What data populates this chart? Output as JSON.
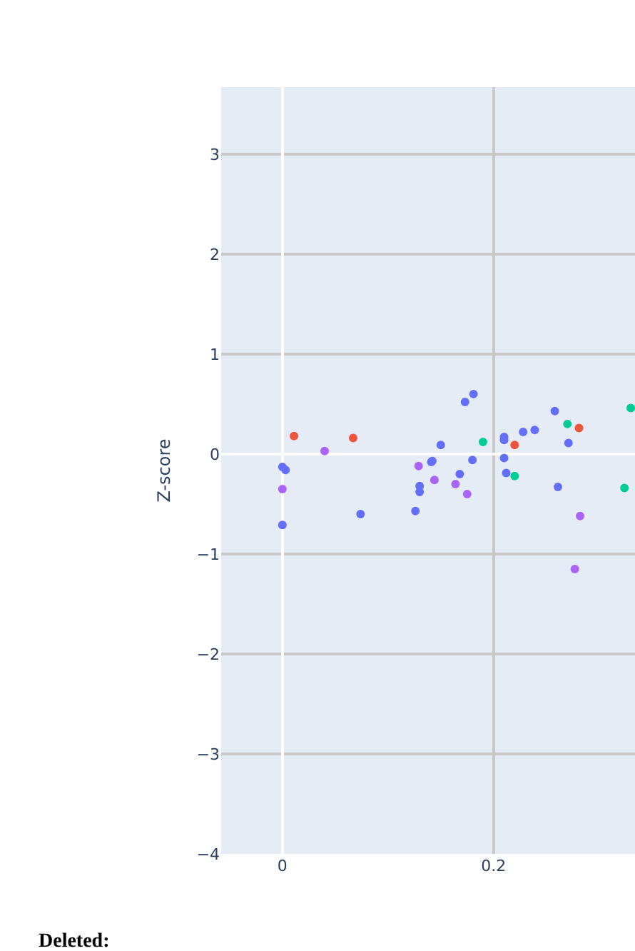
{
  "chart_data": {
    "type": "scatter",
    "ylabel": "Z-score",
    "xlim": [
      -0.058,
      0.334
    ],
    "xticks": [
      0,
      0.2
    ],
    "ylim": [
      -4,
      3.67
    ],
    "yticks": [
      -4,
      -3,
      -2,
      -1,
      0,
      1,
      2,
      3
    ],
    "grid": true,
    "marker": "circle",
    "annotations": [
      "Deleted:"
    ],
    "series": [
      {
        "color": "#636efa",
        "x": [
          0.0,
          0.003,
          0.0,
          0.074,
          0.126,
          0.13,
          0.13,
          0.173,
          0.181,
          0.15,
          0.21,
          0.21,
          0.228,
          0.239,
          0.258,
          0.271,
          0.141,
          0.142,
          0.18,
          0.21,
          0.168,
          0.212,
          0.261
        ],
        "values": [
          -0.13,
          -0.16,
          -0.71,
          -0.6,
          -0.57,
          -0.32,
          -0.38,
          0.52,
          0.6,
          0.09,
          0.17,
          0.14,
          0.22,
          0.24,
          0.43,
          0.11,
          -0.08,
          -0.07,
          -0.06,
          -0.04,
          -0.2,
          -0.19,
          -0.33
        ]
      },
      {
        "color": "#ef553b",
        "x": [
          0.011,
          0.067,
          0.22,
          0.281
        ],
        "values": [
          0.18,
          0.16,
          0.09,
          0.26
        ]
      },
      {
        "color": "#00cc96",
        "x": [
          0.19,
          0.27,
          0.33,
          0.22,
          0.324
        ],
        "values": [
          0.12,
          0.3,
          0.46,
          -0.22,
          -0.34
        ]
      },
      {
        "color": "#ab63fa",
        "x": [
          0.04,
          0.0,
          0.129,
          0.144,
          0.164,
          0.175,
          0.282,
          0.277
        ],
        "values": [
          0.03,
          -0.35,
          -0.12,
          -0.26,
          -0.3,
          -0.4,
          -0.62,
          -1.15
        ]
      }
    ]
  }
}
